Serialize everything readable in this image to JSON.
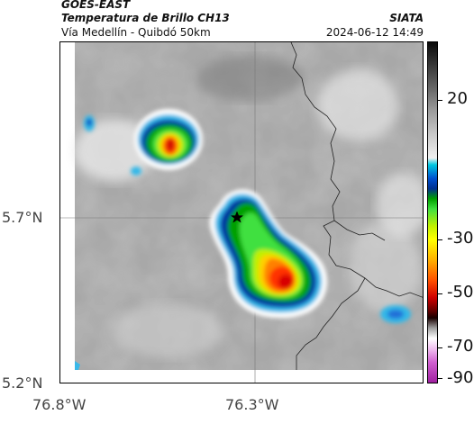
{
  "header": {
    "satellite": "GOES-EAST",
    "product": "Temperatura de Brillo CH13",
    "route": "Vía Medellín - Quibdó 50km",
    "agency": "SIATA",
    "timestamp": "2024-06-12 14:49"
  },
  "map": {
    "lat_labels": [
      "5.7°N",
      "5.2°N"
    ],
    "lon_labels": [
      "76.8°W",
      "76.3°W"
    ],
    "marker_icon": "star-icon"
  },
  "colorbar": {
    "tick_labels": [
      "20",
      "-30",
      "-50",
      "-70",
      "-90"
    ],
    "colors": [
      "#0a0a0a",
      "#f0f0f0",
      "#00c8e0",
      "#0050d0",
      "#00a000",
      "#ffff00",
      "#ff5000",
      "#d00000",
      "#180000",
      "#ffffff",
      "#a020a0"
    ]
  }
}
